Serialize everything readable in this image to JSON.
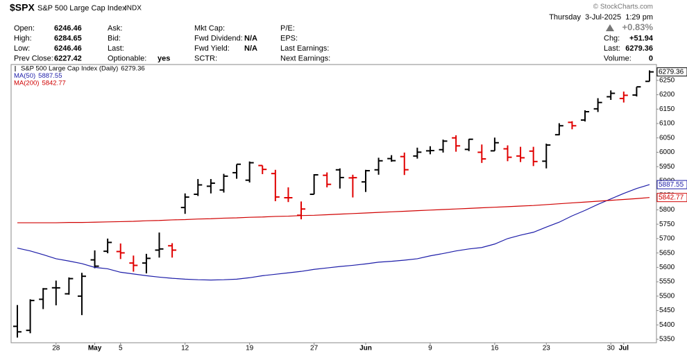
{
  "header": {
    "symbol": "$SPX",
    "name": "S&P 500 Large Cap Index",
    "exchange": "INDX",
    "copyright": "© StockCharts.com",
    "datetime": "Thursday  3-Jul-2025  1:29 pm",
    "col1": [
      [
        "Open:",
        6246.46
      ],
      [
        "High:",
        6284.65
      ],
      [
        "Low:",
        6246.46
      ],
      [
        "Prev Close:",
        6227.42
      ]
    ],
    "col2": [
      [
        "Ask:"
      ],
      [
        "Bid:"
      ],
      [
        "Last:"
      ],
      [
        "Optionable:",
        "yes"
      ]
    ],
    "col3": [
      [
        "Mkt Cap:"
      ],
      [
        "Fwd Dividend:",
        "N/A"
      ],
      [
        "Fwd Yield:",
        "N/A"
      ],
      [
        "SCTR:"
      ]
    ],
    "col4": [
      [
        "P/E:"
      ],
      [
        "EPS:"
      ],
      [
        "Last Earnings:"
      ],
      [
        "Next Earnings:"
      ]
    ],
    "change_pct": "+0.83%",
    "right": [
      [
        "Chg:",
        "+51.94"
      ],
      [
        "Last:",
        6279.36
      ],
      [
        "Volume:",
        0
      ]
    ]
  },
  "chart_data": {
    "type": "ohlc",
    "categories": [
      null,
      null,
      null,
      "28",
      null,
      null,
      "May",
      null,
      "5",
      null,
      null,
      null,
      null,
      "12",
      null,
      null,
      null,
      null,
      "19",
      null,
      null,
      null,
      null,
      "27",
      null,
      null,
      null,
      "Jun",
      null,
      null,
      null,
      null,
      "9",
      null,
      null,
      null,
      null,
      "16",
      null,
      null,
      null,
      "23",
      null,
      null,
      null,
      null,
      "30",
      "Jul",
      null,
      null
    ],
    "ylim": [
      5338,
      6305
    ],
    "yticks": [
      5350,
      5400,
      5450,
      5500,
      5550,
      5600,
      5650,
      5700,
      5750,
      5800,
      5850,
      5900,
      5950,
      6000,
      6050,
      6100,
      6150,
      6200,
      6250
    ],
    "series": [
      {
        "name": "S&P 500 Large Cap Index (Daily)",
        "up_color": "#000000",
        "down_color": "#e00000",
        "open": [
          5395,
          5381,
          5489,
          5529,
          5508,
          5500,
          5626,
          5656,
          5655,
          5615,
          5615,
          5660,
          5675,
          5808,
          5854,
          5882,
          5869,
          5929,
          5903,
          5954,
          5926,
          5842,
          5781,
          5854,
          5920,
          5939,
          5911,
          5897,
          5939,
          5978,
          5985,
          5987,
          6005,
          6009,
          6050,
          6010,
          6000,
          6005,
          6012,
          5987,
          6004,
          5969,
          6061,
          6104,
          6112,
          6151,
          6193,
          6187,
          6199,
          6246.46
        ],
        "high": [
          5469,
          5489,
          5528,
          5554,
          5565,
          5581,
          5659,
          5700,
          5683,
          5641,
          5647,
          5721,
          5684,
          5857,
          5907,
          5907,
          5925,
          5958,
          5968,
          5954,
          5939,
          5878,
          5829,
          5924,
          5930,
          5944,
          5922,
          5939,
          5981,
          5990,
          5999,
          6016,
          6021,
          6044,
          6059,
          6046,
          6027,
          6051,
          6024,
          6019,
          6019,
          6030,
          6101,
          6108,
          6146,
          6188,
          6215,
          6211,
          6227,
          6284.65
        ],
        "low": [
          5356,
          5371,
          5455,
          5468,
          5505,
          5434,
          5597,
          5649,
          5629,
          5585,
          5579,
          5634,
          5634,
          5786,
          5848,
          5857,
          5860,
          5908,
          5895,
          5924,
          5830,
          5827,
          5767,
          5854,
          5878,
          5874,
          5843,
          5862,
          5922,
          5967,
          5921,
          5978,
          5993,
          5999,
          6002,
          6004,
          5963,
          6005,
          5969,
          5966,
          5952,
          5944,
          6059,
          6080,
          6107,
          6140,
          6182,
          6173,
          6194,
          6246.46
        ],
        "close": [
          5375.86,
          5484.77,
          5525.21,
          5528.75,
          5560.83,
          5569.06,
          5604.14,
          5686.67,
          5650.38,
          5606.91,
          5631.28,
          5663.94,
          5659.91,
          5844.19,
          5886.55,
          5892.58,
          5916.93,
          5958.38,
          5963.6,
          5940.46,
          5844.61,
          5842.01,
          5802.82,
          5921.54,
          5888.55,
          5912.17,
          5911.69,
          5935.94,
          5970.37,
          5970.81,
          5939.3,
          6000.36,
          6005.88,
          6038.81,
          6022.24,
          6045.26,
          5976.97,
          6033.11,
          5982.72,
          5980.87,
          5967.84,
          6025.17,
          6092.18,
          6092.16,
          6141.02,
          6173.07,
          6204.95,
          6198.01,
          6227.42,
          6279.36
        ]
      },
      {
        "name": "MA(50)",
        "color": "#1c1ca8",
        "values": [
          5667,
          5657,
          5644,
          5630,
          5622,
          5613,
          5600,
          5595,
          5583,
          5577,
          5571,
          5566,
          5562,
          5559,
          5557,
          5556,
          5557,
          5559,
          5564,
          5571,
          5576,
          5581,
          5586,
          5593,
          5598,
          5603,
          5607,
          5612,
          5618,
          5621,
          5625,
          5630,
          5640,
          5648,
          5657,
          5664,
          5669,
          5681,
          5700,
          5712,
          5722,
          5740,
          5757,
          5779,
          5798,
          5819,
          5838,
          5857,
          5874,
          5887.55
        ]
      },
      {
        "name": "MA(200)",
        "color": "#d00000",
        "values": [
          5755,
          5755,
          5755,
          5755,
          5756,
          5756,
          5757,
          5758,
          5759,
          5760,
          5762,
          5763,
          5765,
          5766,
          5768,
          5769,
          5771,
          5772,
          5774,
          5775,
          5777,
          5778,
          5780,
          5781,
          5783,
          5785,
          5787,
          5789,
          5791,
          5793,
          5795,
          5797,
          5799,
          5801,
          5803,
          5805,
          5807,
          5809,
          5811,
          5813,
          5815,
          5818,
          5821,
          5824,
          5827,
          5830,
          5833,
          5836,
          5839,
          5842.77
        ]
      }
    ]
  }
}
